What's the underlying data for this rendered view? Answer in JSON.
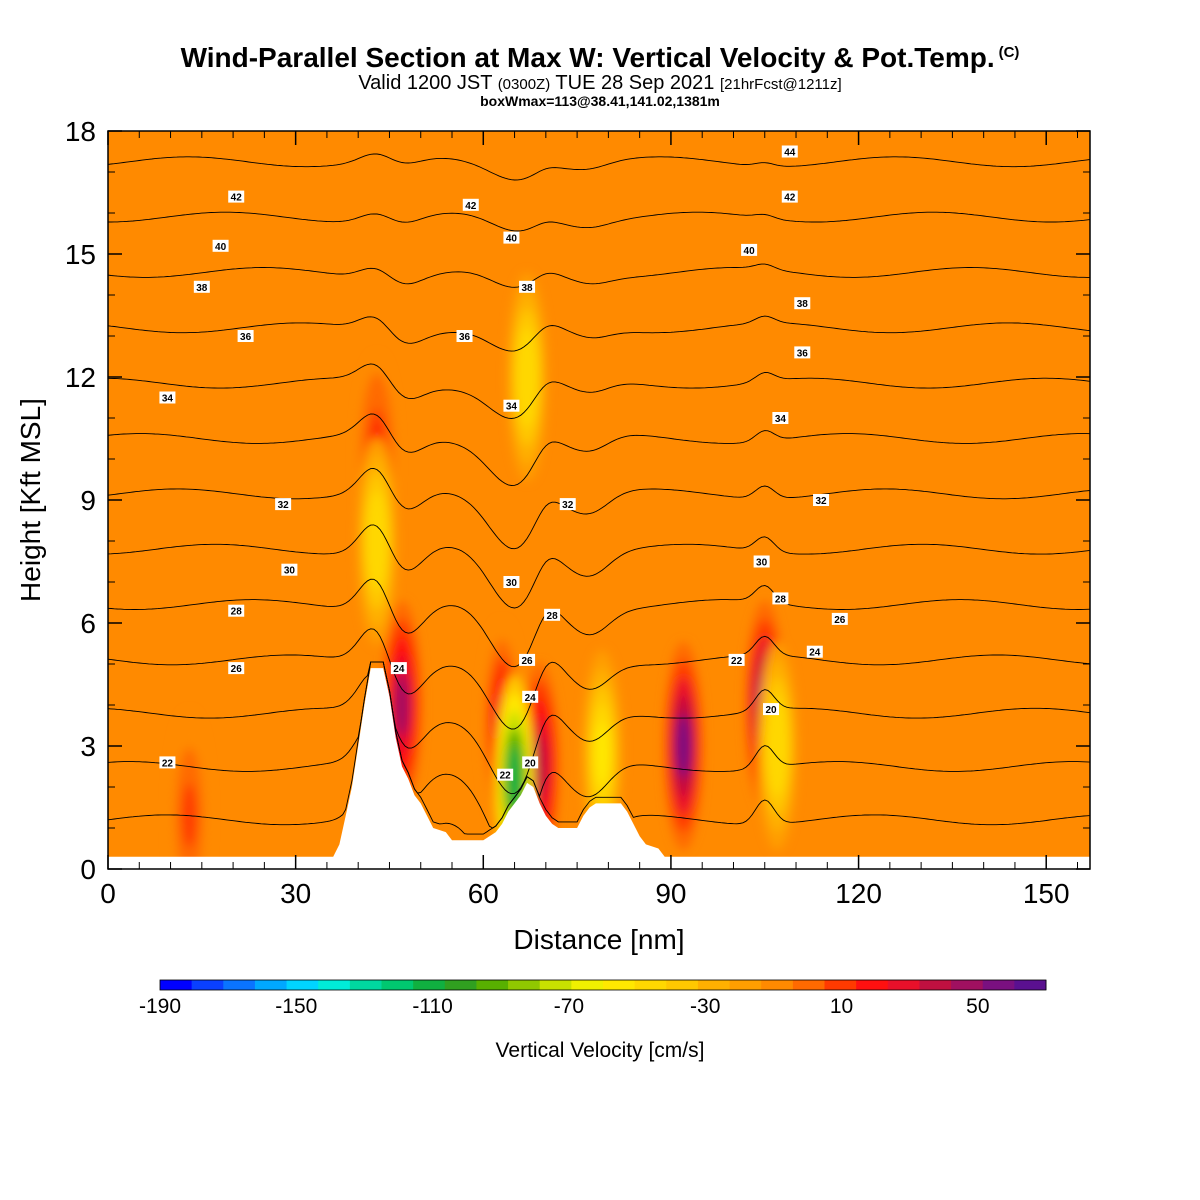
{
  "header": {
    "title": "Wind-Parallel Section at Max W: Vertical Velocity & Pot.Temp.",
    "copyright": "(C)",
    "valid_prefix": "Valid 1200 JST",
    "valid_utc": "(0300Z)",
    "valid_date": "TUE 28 Sep 2021",
    "forecast": "[21hrFcst@1211z]",
    "boxw": "boxWmax=113@38.41,141.02,1381m"
  },
  "chart_data": {
    "type": "heatmap",
    "xlabel": "Distance [nm]",
    "ylabel": "Height [Kft MSL]",
    "xlim": [
      0,
      157
    ],
    "ylim": [
      0,
      18
    ],
    "x_ticks": [
      0,
      30,
      60,
      90,
      120,
      150
    ],
    "y_ticks": [
      0,
      3,
      6,
      9,
      12,
      15,
      18
    ],
    "colorbar": {
      "title": "Vertical Velocity [cm/s]",
      "tick_labels": [
        "-190",
        "-150",
        "-110",
        "-70",
        "-30",
        "10",
        "50"
      ],
      "tick_values": [
        -190,
        -150,
        -110,
        -70,
        -30,
        10,
        50
      ],
      "range": [
        -190,
        70
      ],
      "step": 10,
      "colors": [
        "#0000ff",
        "#0a40ff",
        "#0a74ff",
        "#00a8ff",
        "#00d4ff",
        "#00ecd8",
        "#00d8a0",
        "#00c870",
        "#10b040",
        "#30a020",
        "#58b000",
        "#90c800",
        "#c8e000",
        "#f0f000",
        "#ffe800",
        "#ffd800",
        "#ffc800",
        "#ffb000",
        "#ff9e00",
        "#ff8a00",
        "#ff6a00",
        "#ff3a00",
        "#ff1010",
        "#e8102a",
        "#c01040",
        "#a01060",
        "#7a1080",
        "#5a1090"
      ]
    },
    "background_value_cm_s": 0,
    "updraft_cores": [
      {
        "x": 13,
        "z": 1.3,
        "peak_cm_s": 20
      },
      {
        "x": 43,
        "z": 10,
        "peak_cm_s": 30
      },
      {
        "x": 47,
        "z": 4.0,
        "peak_cm_s": 60
      },
      {
        "x": 63,
        "z": 3.5,
        "peak_cm_s": 40
      },
      {
        "x": 69,
        "z": 2.5,
        "peak_cm_s": 50
      },
      {
        "x": 92,
        "z": 3.0,
        "peak_cm_s": 70
      },
      {
        "x": 105,
        "z": 4.0,
        "peak_cm_s": 70
      }
    ],
    "downdraft_cores": [
      {
        "x": 43,
        "z": 8.0,
        "min_cm_s": -40
      },
      {
        "x": 65,
        "z": 2.2,
        "min_cm_s": -110
      },
      {
        "x": 67,
        "z": 12,
        "min_cm_s": -40
      },
      {
        "x": 79,
        "z": 2.8,
        "min_cm_s": -50
      },
      {
        "x": 107,
        "z": 3.0,
        "min_cm_s": -40
      }
    ],
    "theta_contour_levels": [
      20,
      22,
      24,
      26,
      28,
      30,
      32,
      34,
      36,
      38,
      40,
      42,
      44
    ],
    "theta_labels": [
      {
        "text": "22",
        "x": 9.5,
        "z": 2.6
      },
      {
        "text": "26",
        "x": 20.5,
        "z": 4.9
      },
      {
        "text": "28",
        "x": 20.5,
        "z": 6.3
      },
      {
        "text": "30",
        "x": 29,
        "z": 7.3
      },
      {
        "text": "32",
        "x": 28,
        "z": 8.9
      },
      {
        "text": "34",
        "x": 9.5,
        "z": 11.5
      },
      {
        "text": "36",
        "x": 22,
        "z": 13.0
      },
      {
        "text": "38",
        "x": 15,
        "z": 14.2
      },
      {
        "text": "40",
        "x": 18,
        "z": 15.2
      },
      {
        "text": "42",
        "x": 20.5,
        "z": 16.4
      },
      {
        "text": "24",
        "x": 46.5,
        "z": 4.9
      },
      {
        "text": "22",
        "x": 63.5,
        "z": 2.3
      },
      {
        "text": "20",
        "x": 67.5,
        "z": 2.6
      },
      {
        "text": "24",
        "x": 67.5,
        "z": 4.2
      },
      {
        "text": "26",
        "x": 67,
        "z": 5.1
      },
      {
        "text": "28",
        "x": 71,
        "z": 6.2
      },
      {
        "text": "30",
        "x": 64.5,
        "z": 7.0
      },
      {
        "text": "32",
        "x": 73.5,
        "z": 8.9
      },
      {
        "text": "34",
        "x": 64.5,
        "z": 11.3
      },
      {
        "text": "36",
        "x": 57,
        "z": 13.0
      },
      {
        "text": "38",
        "x": 67,
        "z": 14.2
      },
      {
        "text": "40",
        "x": 64.5,
        "z": 15.4
      },
      {
        "text": "42",
        "x": 58,
        "z": 16.2
      },
      {
        "text": "22",
        "x": 100.5,
        "z": 5.1
      },
      {
        "text": "30",
        "x": 104.5,
        "z": 7.5
      },
      {
        "text": "28",
        "x": 107.5,
        "z": 6.6
      },
      {
        "text": "26",
        "x": 117,
        "z": 6.1
      },
      {
        "text": "24",
        "x": 113,
        "z": 5.3
      },
      {
        "text": "20",
        "x": 106,
        "z": 3.9
      },
      {
        "text": "34",
        "x": 107.5,
        "z": 11.0
      },
      {
        "text": "36",
        "x": 111,
        "z": 12.6
      },
      {
        "text": "38",
        "x": 111,
        "z": 13.8
      },
      {
        "text": "40",
        "x": 102.5,
        "z": 15.1
      },
      {
        "text": "42",
        "x": 109,
        "z": 16.4
      },
      {
        "text": "44",
        "x": 109,
        "z": 17.5
      },
      {
        "text": "32",
        "x": 114,
        "z": 9.0
      }
    ],
    "terrain": [
      [
        0,
        0.3
      ],
      [
        36,
        0.3
      ],
      [
        37,
        0.6
      ],
      [
        38,
        1.3
      ],
      [
        39,
        2.0
      ],
      [
        40,
        3.0
      ],
      [
        41,
        4.0
      ],
      [
        42,
        4.9
      ],
      [
        44,
        4.9
      ],
      [
        45,
        4.2
      ],
      [
        46,
        3.2
      ],
      [
        47,
        2.5
      ],
      [
        48,
        2.2
      ],
      [
        49,
        1.8
      ],
      [
        50,
        1.6
      ],
      [
        51,
        1.3
      ],
      [
        52,
        1.0
      ],
      [
        54,
        0.9
      ],
      [
        55,
        0.7
      ],
      [
        58,
        0.7
      ],
      [
        60,
        0.7
      ],
      [
        61,
        0.8
      ],
      [
        62,
        0.9
      ],
      [
        63,
        1.1
      ],
      [
        64,
        1.4
      ],
      [
        65,
        1.6
      ],
      [
        66,
        1.8
      ],
      [
        67,
        2.1
      ],
      [
        68,
        2.0
      ],
      [
        69,
        1.6
      ],
      [
        70,
        1.3
      ],
      [
        71,
        1.1
      ],
      [
        72,
        1.0
      ],
      [
        75,
        1.0
      ],
      [
        76,
        1.3
      ],
      [
        77,
        1.5
      ],
      [
        78,
        1.6
      ],
      [
        82,
        1.6
      ],
      [
        83,
        1.4
      ],
      [
        84,
        1.1
      ],
      [
        85,
        0.8
      ],
      [
        86,
        0.6
      ],
      [
        88,
        0.5
      ],
      [
        89,
        0.3
      ],
      [
        157,
        0.3
      ]
    ]
  }
}
